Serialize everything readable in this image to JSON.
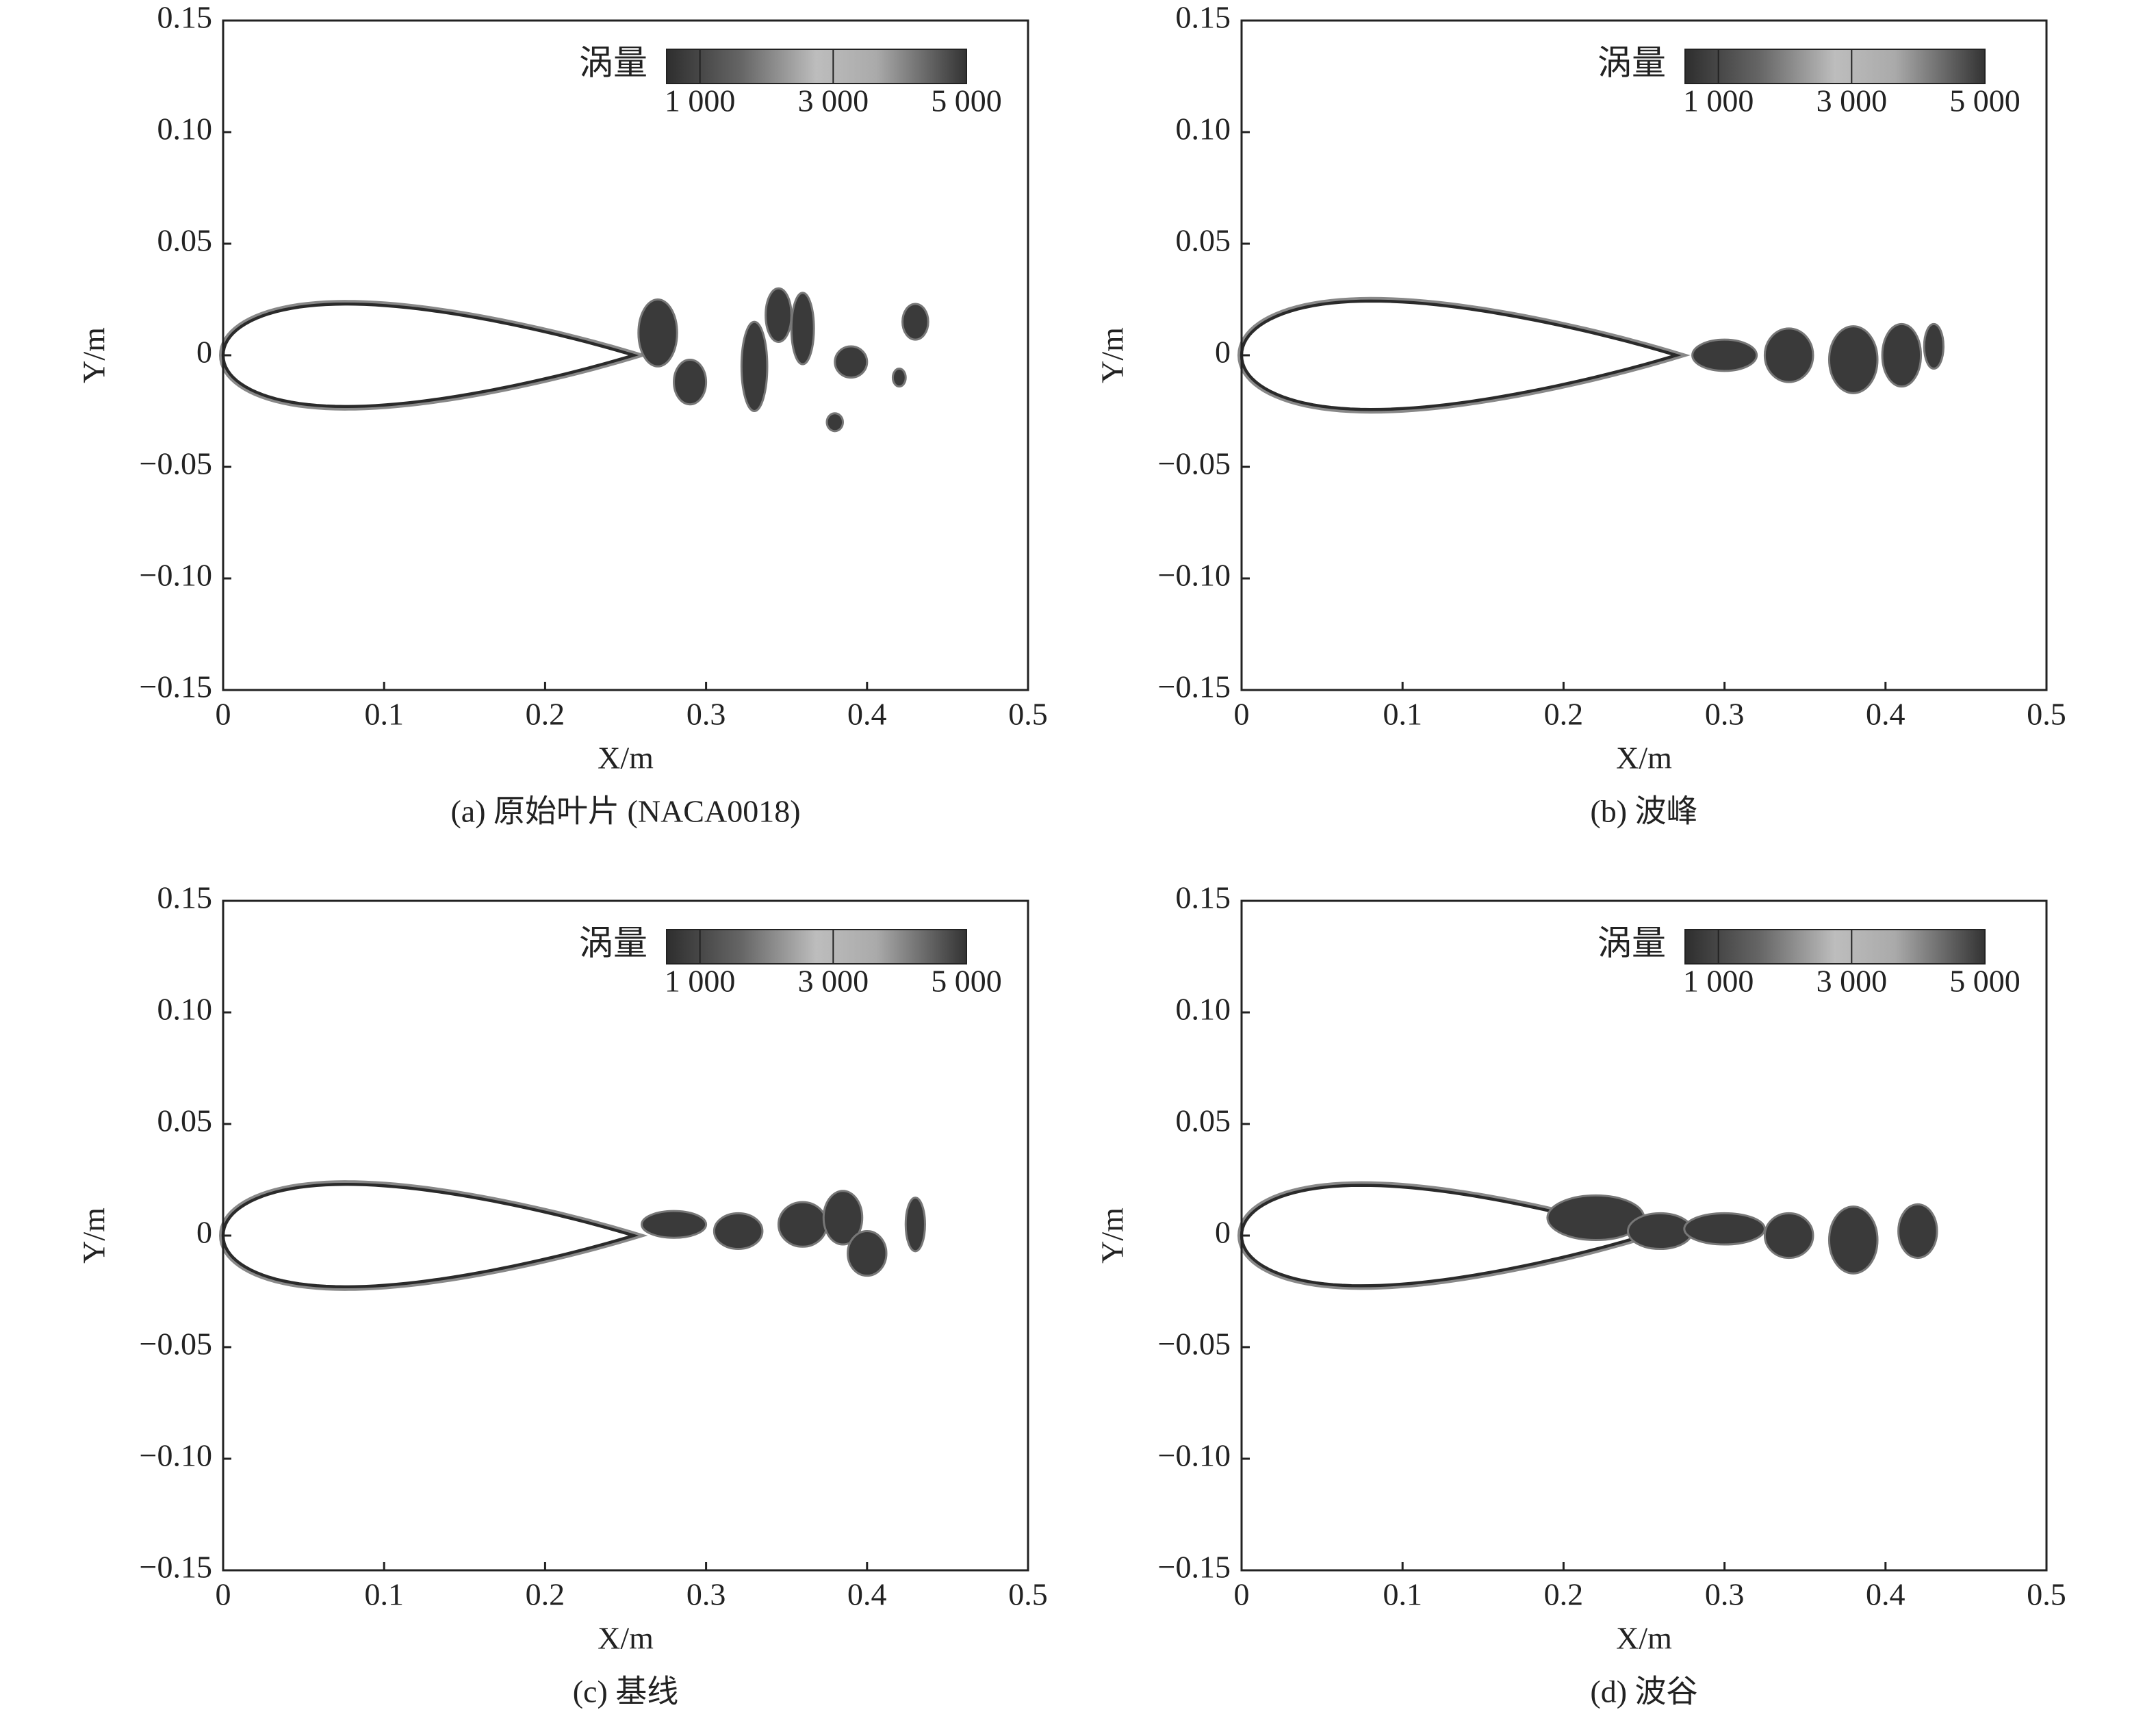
{
  "chart_data": [
    {
      "type": "contour",
      "caption": "(a) 原始叶片 (NACA0018)",
      "xlabel": "X/m",
      "ylabel": "Y/m",
      "xlim": [
        0,
        0.5
      ],
      "ylim": [
        -0.15,
        0.15
      ],
      "xticks": [
        0,
        0.1,
        0.2,
        0.3,
        0.4,
        0.5
      ],
      "yticks": [
        {
          "value": -0.15,
          "label": "−0.15"
        },
        {
          "value": -0.1,
          "label": "−0.10"
        },
        {
          "value": -0.05,
          "label": "−0.05"
        },
        0,
        {
          "value": 0.05,
          "label": "0.05"
        },
        {
          "value": 0.1,
          "label": "0.10"
        },
        {
          "value": 0.15,
          "label": "0.15"
        }
      ],
      "colorbar_title": "涡量",
      "colorbar_lim": [
        500,
        5000
      ],
      "colorbar_ticks": [
        {
          "value": 1000,
          "label": "1 000"
        },
        {
          "value": 3000,
          "label": "3 000"
        },
        {
          "value": 5000,
          "label": "5 000"
        }
      ]
    },
    {
      "type": "contour",
      "caption": "(b) 波峰",
      "xlabel": "X/m",
      "ylabel": "Y/m",
      "xlim": [
        0,
        0.5
      ],
      "ylim": [
        -0.15,
        0.15
      ],
      "xticks": [
        0,
        0.1,
        0.2,
        0.3,
        0.4,
        0.5
      ],
      "yticks": [
        {
          "value": -0.15,
          "label": "−0.15"
        },
        {
          "value": -0.1,
          "label": "−0.10"
        },
        {
          "value": -0.05,
          "label": "−0.05"
        },
        0,
        {
          "value": 0.05,
          "label": "0.05"
        },
        {
          "value": 0.1,
          "label": "0.10"
        },
        {
          "value": 0.15,
          "label": "0.15"
        }
      ],
      "colorbar_title": "涡量",
      "colorbar_lim": [
        500,
        5000
      ],
      "colorbar_ticks": [
        {
          "value": 1000,
          "label": "1 000"
        },
        {
          "value": 3000,
          "label": "3 000"
        },
        {
          "value": 5000,
          "label": "5 000"
        }
      ]
    },
    {
      "type": "contour",
      "caption": "(c) 基线",
      "xlabel": "X/m",
      "ylabel": "Y/m",
      "xlim": [
        0,
        0.5
      ],
      "ylim": [
        -0.15,
        0.15
      ],
      "xticks": [
        0,
        0.1,
        0.2,
        0.3,
        0.4,
        0.5
      ],
      "yticks": [
        {
          "value": -0.15,
          "label": "−0.15"
        },
        {
          "value": -0.1,
          "label": "−0.10"
        },
        {
          "value": -0.05,
          "label": "−0.05"
        },
        0,
        {
          "value": 0.05,
          "label": "0.05"
        },
        {
          "value": 0.1,
          "label": "0.10"
        },
        {
          "value": 0.15,
          "label": "0.15"
        }
      ],
      "colorbar_title": "涡量",
      "colorbar_lim": [
        500,
        5000
      ],
      "colorbar_ticks": [
        {
          "value": 1000,
          "label": "1 000"
        },
        {
          "value": 3000,
          "label": "3 000"
        },
        {
          "value": 5000,
          "label": "5 000"
        }
      ]
    },
    {
      "type": "contour",
      "caption": "(d) 波谷",
      "xlabel": "X/m",
      "ylabel": "Y/m",
      "xlim": [
        0,
        0.5
      ],
      "ylim": [
        -0.15,
        0.15
      ],
      "xticks": [
        0,
        0.1,
        0.2,
        0.3,
        0.4,
        0.5
      ],
      "yticks": [
        {
          "value": -0.15,
          "label": "−0.15"
        },
        {
          "value": -0.1,
          "label": "−0.10"
        },
        {
          "value": -0.05,
          "label": "−0.05"
        },
        0,
        {
          "value": 0.05,
          "label": "0.05"
        },
        {
          "value": 0.1,
          "label": "0.10"
        },
        {
          "value": 0.15,
          "label": "0.15"
        }
      ],
      "colorbar_title": "涡量",
      "colorbar_lim": [
        500,
        5000
      ],
      "colorbar_ticks": [
        {
          "value": 1000,
          "label": "1 000"
        },
        {
          "value": 3000,
          "label": "3 000"
        },
        {
          "value": 5000,
          "label": "5 000"
        }
      ]
    }
  ]
}
